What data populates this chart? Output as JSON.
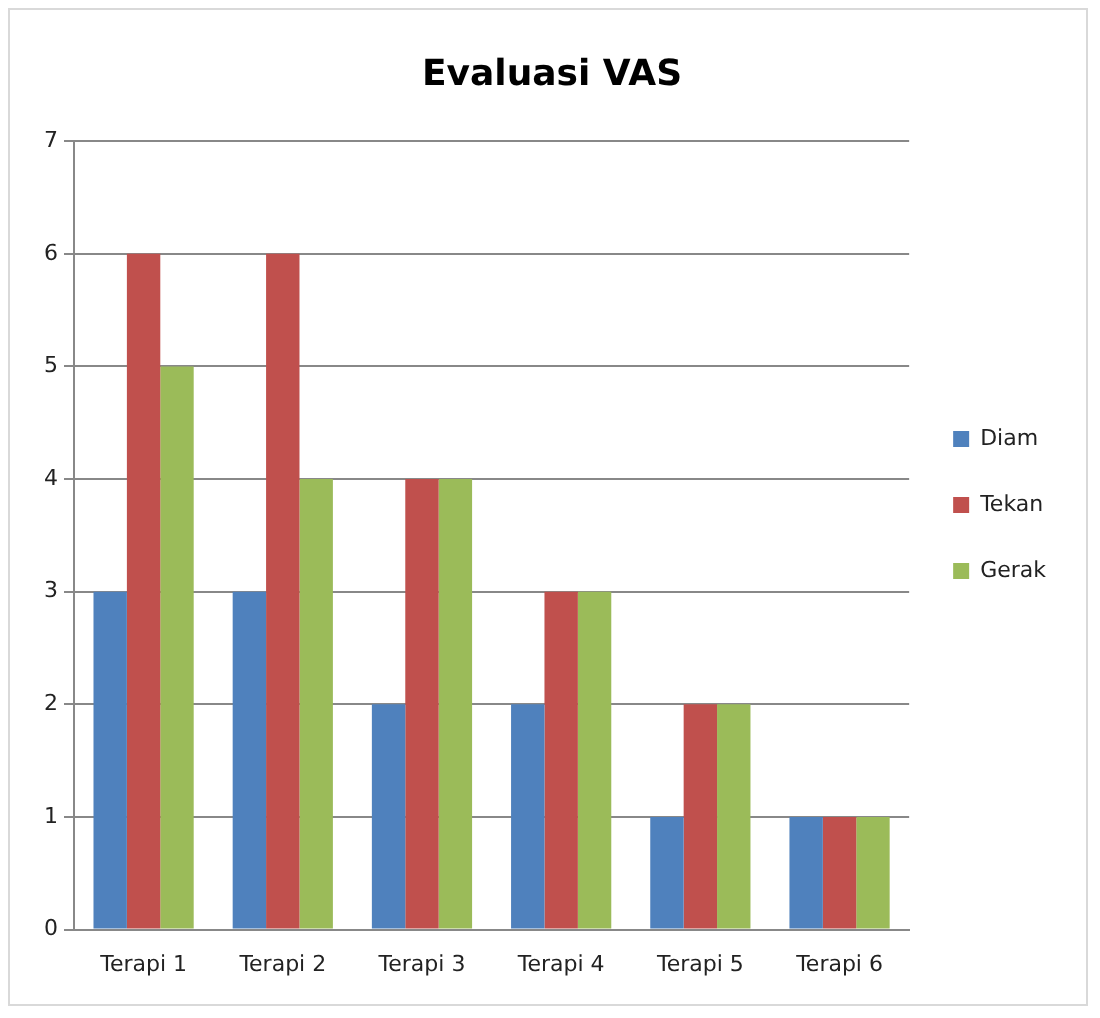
{
  "chart_data": {
    "type": "bar",
    "title": "Evaluasi VAS",
    "categories": [
      "Terapi 1",
      "Terapi 2",
      "Terapi 3",
      "Terapi 4",
      "Terapi 5",
      "Terapi 6"
    ],
    "series": [
      {
        "name": "Diam",
        "color": "#4f81bd",
        "values": [
          3,
          3,
          2,
          2,
          1,
          1
        ]
      },
      {
        "name": "Tekan",
        "color": "#c0504d",
        "values": [
          6,
          6,
          4,
          3,
          2,
          1
        ]
      },
      {
        "name": "Gerak",
        "color": "#9bbb59",
        "values": [
          5,
          4,
          4,
          3,
          2,
          1
        ]
      }
    ],
    "ylim": [
      0,
      7
    ],
    "yticks": [
      0,
      1,
      2,
      3,
      4,
      5,
      6,
      7
    ],
    "grid": "y",
    "legend": "right"
  }
}
